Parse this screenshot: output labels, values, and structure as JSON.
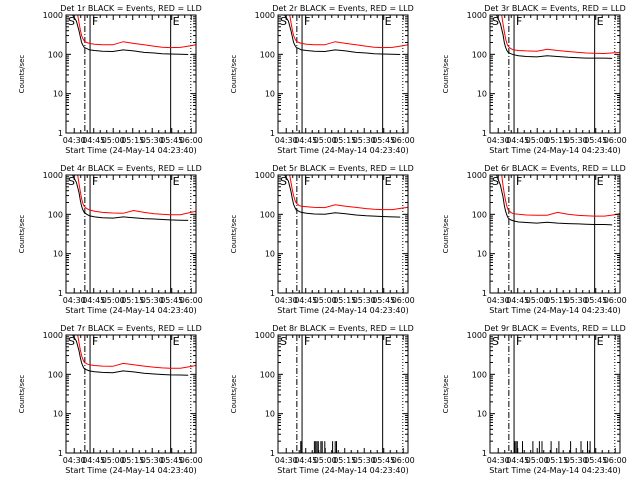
{
  "page": {
    "title": "Detector Events vs LLD rate plots"
  },
  "colors": {
    "events": "#000000",
    "lld": "#ff0000",
    "axes": "#000000"
  },
  "common": {
    "ylabel": "Counts/sec",
    "xlabel": "Start Time (24-May-14 04:23:40)",
    "title_suffix": "BLACK = Events, RED = LLD",
    "x_ticks": [
      "04:30",
      "04:45",
      "05:00",
      "05:15",
      "05:30",
      "05:45",
      "06:00"
    ],
    "x_tick_values_min": [
      6.33,
      21.33,
      36.33,
      51.33,
      66.33,
      81.33,
      96.33
    ],
    "y_ticks": [
      "1",
      "10",
      "100",
      "1000"
    ],
    "xlim_min": [
      0,
      100
    ],
    "ylim_log": [
      1,
      1000
    ],
    "markers": [
      {
        "label": "S",
        "x_min": 0,
        "style": "solid"
      },
      {
        "label": "",
        "x_min": 14.5,
        "style": "dashdot"
      },
      {
        "label": "F",
        "x_min": 18.5,
        "style": "solid"
      },
      {
        "label": "E",
        "x_min": 80.5,
        "style": "solid"
      },
      {
        "label": "",
        "x_min": 96.0,
        "style": "dotted"
      }
    ]
  },
  "chart_data": [
    {
      "type": "line",
      "title": "Det 1r",
      "series": [
        {
          "name": "Events",
          "x": [
            5,
            8,
            10,
            11,
            12,
            13,
            14,
            16,
            18,
            22,
            28,
            36,
            44,
            52,
            60,
            68,
            74,
            80,
            88,
            94
          ],
          "values": [
            1000,
            700,
            400,
            280,
            200,
            170,
            150,
            140,
            130,
            125,
            120,
            118,
            130,
            122,
            112,
            108,
            104,
            102,
            100,
            99
          ]
        },
        {
          "name": "LLD",
          "x": [
            9,
            10,
            11,
            12,
            13,
            14,
            16,
            18,
            22,
            28,
            36,
            44,
            52,
            60,
            68,
            74,
            80,
            88,
            96,
            100
          ],
          "values": [
            1000,
            650,
            420,
            300,
            250,
            220,
            200,
            190,
            180,
            175,
            175,
            210,
            190,
            175,
            160,
            152,
            148,
            150,
            165,
            175
          ]
        }
      ]
    },
    {
      "type": "line",
      "title": "Det 2r",
      "series": [
        {
          "name": "Events",
          "x": [
            5,
            8,
            10,
            11,
            12,
            13,
            14,
            16,
            18,
            22,
            28,
            36,
            44,
            52,
            60,
            68,
            74,
            80,
            88,
            94
          ],
          "values": [
            1000,
            700,
            400,
            280,
            200,
            170,
            150,
            140,
            130,
            125,
            120,
            118,
            130,
            122,
            112,
            108,
            104,
            102,
            100,
            99
          ]
        },
        {
          "name": "LLD",
          "x": [
            9,
            10,
            11,
            12,
            13,
            14,
            16,
            18,
            22,
            28,
            36,
            44,
            52,
            60,
            68,
            74,
            80,
            88,
            96,
            100
          ],
          "values": [
            1000,
            650,
            420,
            300,
            250,
            220,
            200,
            190,
            180,
            175,
            175,
            210,
            190,
            175,
            160,
            152,
            148,
            150,
            165,
            175
          ]
        }
      ]
    },
    {
      "type": "line",
      "title": "Det 3r",
      "series": [
        {
          "name": "Events",
          "x": [
            5,
            8,
            10,
            11,
            12,
            13,
            14,
            16,
            18,
            22,
            28,
            36,
            44,
            52,
            60,
            68,
            74,
            80,
            88,
            94
          ],
          "values": [
            1000,
            600,
            320,
            200,
            150,
            125,
            112,
            104,
            98,
            92,
            88,
            86,
            92,
            88,
            84,
            82,
            80,
            80,
            80,
            79
          ]
        },
        {
          "name": "LLD",
          "x": [
            9,
            10,
            11,
            12,
            13,
            14,
            16,
            18,
            22,
            28,
            36,
            44,
            52,
            60,
            68,
            74,
            80,
            88,
            96,
            100
          ],
          "values": [
            1000,
            600,
            380,
            250,
            190,
            160,
            140,
            130,
            125,
            122,
            120,
            135,
            125,
            118,
            112,
            108,
            106,
            105,
            110,
            112
          ]
        }
      ]
    },
    {
      "type": "line",
      "title": "Det 4r",
      "series": [
        {
          "name": "Events",
          "x": [
            5,
            8,
            10,
            11,
            12,
            13,
            14,
            16,
            18,
            22,
            28,
            36,
            44,
            52,
            60,
            68,
            74,
            80,
            88,
            94
          ],
          "values": [
            1000,
            650,
            360,
            230,
            160,
            130,
            112,
            100,
            92,
            86,
            82,
            80,
            86,
            82,
            78,
            76,
            74,
            72,
            71,
            70
          ]
        },
        {
          "name": "LLD",
          "x": [
            9,
            10,
            11,
            12,
            13,
            14,
            16,
            18,
            22,
            28,
            36,
            44,
            52,
            60,
            68,
            74,
            80,
            88,
            96,
            100
          ],
          "values": [
            1000,
            600,
            380,
            250,
            190,
            160,
            140,
            130,
            120,
            112,
            108,
            106,
            125,
            112,
            104,
            100,
            98,
            98,
            112,
            120
          ]
        }
      ]
    },
    {
      "type": "line",
      "title": "Det 5r",
      "series": [
        {
          "name": "Events",
          "x": [
            5,
            8,
            10,
            11,
            12,
            13,
            14,
            16,
            18,
            22,
            28,
            36,
            44,
            52,
            60,
            68,
            74,
            80,
            88,
            94
          ],
          "values": [
            1000,
            700,
            380,
            250,
            180,
            150,
            130,
            120,
            112,
            106,
            102,
            100,
            110,
            104,
            96,
            92,
            90,
            88,
            86,
            85
          ]
        },
        {
          "name": "LLD",
          "x": [
            9,
            10,
            11,
            12,
            13,
            14,
            16,
            18,
            22,
            28,
            36,
            44,
            52,
            60,
            68,
            74,
            80,
            88,
            96,
            100
          ],
          "values": [
            1000,
            650,
            420,
            300,
            230,
            195,
            170,
            160,
            155,
            150,
            148,
            175,
            160,
            150,
            140,
            135,
            132,
            132,
            145,
            150
          ]
        }
      ]
    },
    {
      "type": "line",
      "title": "Det 6r",
      "series": [
        {
          "name": "Events",
          "x": [
            5,
            8,
            10,
            11,
            12,
            13,
            14,
            16,
            18,
            22,
            28,
            36,
            44,
            52,
            60,
            68,
            74,
            80,
            88,
            94
          ],
          "values": [
            1000,
            550,
            280,
            170,
            120,
            95,
            80,
            72,
            68,
            64,
            62,
            60,
            63,
            60,
            58,
            57,
            56,
            55,
            55,
            54
          ]
        },
        {
          "name": "LLD",
          "x": [
            9,
            10,
            11,
            12,
            13,
            14,
            16,
            18,
            22,
            28,
            36,
            44,
            52,
            60,
            68,
            74,
            80,
            88,
            96,
            100
          ],
          "values": [
            1000,
            550,
            330,
            220,
            160,
            130,
            112,
            104,
            100,
            96,
            95,
            95,
            112,
            100,
            94,
            92,
            90,
            90,
            98,
            105
          ]
        }
      ]
    },
    {
      "type": "line",
      "title": "Det 7r",
      "series": [
        {
          "name": "Events",
          "x": [
            5,
            8,
            10,
            11,
            12,
            13,
            14,
            16,
            18,
            22,
            28,
            36,
            44,
            52,
            60,
            68,
            74,
            80,
            88,
            94
          ],
          "values": [
            1000,
            700,
            400,
            270,
            195,
            160,
            140,
            130,
            122,
            116,
            112,
            110,
            122,
            115,
            106,
            102,
            99,
            97,
            96,
            95
          ]
        },
        {
          "name": "LLD",
          "x": [
            9,
            10,
            11,
            12,
            13,
            14,
            16,
            18,
            22,
            28,
            36,
            44,
            52,
            60,
            68,
            74,
            80,
            88,
            96,
            100
          ],
          "values": [
            1000,
            650,
            420,
            300,
            240,
            205,
            185,
            175,
            168,
            162,
            160,
            190,
            175,
            162,
            152,
            146,
            143,
            142,
            158,
            170
          ]
        }
      ]
    },
    {
      "type": "line",
      "title": "Det 8r",
      "series": [
        {
          "name": "Events",
          "x": [
            17.5,
            18.2,
            28,
            29,
            30,
            31,
            33,
            34,
            36,
            42,
            44,
            45
          ],
          "values": [
            2,
            2,
            2,
            2,
            2,
            2,
            2,
            2,
            2,
            2,
            2,
            2
          ]
        },
        {
          "name": "LLD",
          "x": [],
          "values": []
        }
      ]
    },
    {
      "type": "line",
      "title": "Det 9r",
      "series": [
        {
          "name": "Events",
          "x": [
            19,
            20,
            21,
            25,
            33,
            38,
            40,
            47,
            53,
            62,
            70,
            75,
            77
          ],
          "values": [
            2,
            2,
            2,
            2,
            2,
            2,
            2,
            2,
            2,
            2,
            2,
            2,
            2
          ]
        },
        {
          "name": "LLD",
          "x": [],
          "values": []
        }
      ]
    }
  ]
}
